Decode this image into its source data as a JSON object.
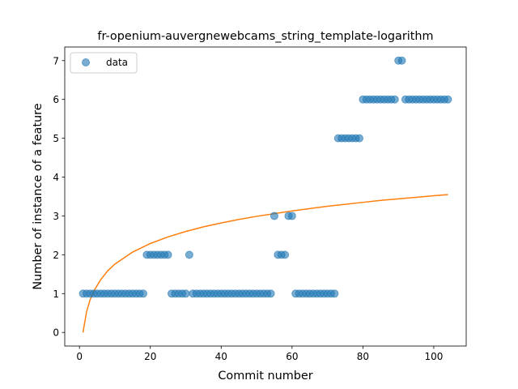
{
  "chart_data": {
    "type": "scatter",
    "title": "fr-openium-auvergnewebcams_string_template-logarithm",
    "xlabel": "Commit number",
    "ylabel": "Number of instance of a feature",
    "xlim": [
      -4.15,
      109.15
    ],
    "ylim": [
      -0.35,
      7.35
    ],
    "xticks": [
      0,
      20,
      40,
      60,
      80,
      100
    ],
    "yticks": [
      0,
      1,
      2,
      3,
      4,
      5,
      6,
      7
    ],
    "grid": false,
    "legend": {
      "position": "top-left",
      "entries": [
        "data"
      ]
    },
    "colors": {
      "scatter": "#1f77b4",
      "fit": "#ff7f0e"
    },
    "series": [
      {
        "name": "data",
        "kind": "scatter",
        "points": [
          [
            1,
            1
          ],
          [
            2,
            1
          ],
          [
            3,
            1
          ],
          [
            4,
            1
          ],
          [
            5,
            1
          ],
          [
            6,
            1
          ],
          [
            7,
            1
          ],
          [
            8,
            1
          ],
          [
            9,
            1
          ],
          [
            10,
            1
          ],
          [
            11,
            1
          ],
          [
            12,
            1
          ],
          [
            13,
            1
          ],
          [
            14,
            1
          ],
          [
            15,
            1
          ],
          [
            16,
            1
          ],
          [
            17,
            1
          ],
          [
            18,
            1
          ],
          [
            19,
            2
          ],
          [
            20,
            2
          ],
          [
            21,
            2
          ],
          [
            22,
            2
          ],
          [
            23,
            2
          ],
          [
            24,
            2
          ],
          [
            25,
            2
          ],
          [
            26,
            1
          ],
          [
            27,
            1
          ],
          [
            28,
            1
          ],
          [
            29,
            1
          ],
          [
            30,
            1
          ],
          [
            31,
            2
          ],
          [
            32,
            1
          ],
          [
            33,
            1
          ],
          [
            34,
            1
          ],
          [
            35,
            1
          ],
          [
            36,
            1
          ],
          [
            37,
            1
          ],
          [
            38,
            1
          ],
          [
            39,
            1
          ],
          [
            40,
            1
          ],
          [
            41,
            1
          ],
          [
            42,
            1
          ],
          [
            43,
            1
          ],
          [
            44,
            1
          ],
          [
            45,
            1
          ],
          [
            46,
            1
          ],
          [
            47,
            1
          ],
          [
            48,
            1
          ],
          [
            49,
            1
          ],
          [
            50,
            1
          ],
          [
            51,
            1
          ],
          [
            52,
            1
          ],
          [
            53,
            1
          ],
          [
            54,
            1
          ],
          [
            55,
            3
          ],
          [
            56,
            2
          ],
          [
            57,
            2
          ],
          [
            58,
            2
          ],
          [
            59,
            3
          ],
          [
            60,
            3
          ],
          [
            61,
            1
          ],
          [
            62,
            1
          ],
          [
            63,
            1
          ],
          [
            64,
            1
          ],
          [
            65,
            1
          ],
          [
            66,
            1
          ],
          [
            67,
            1
          ],
          [
            68,
            1
          ],
          [
            69,
            1
          ],
          [
            70,
            1
          ],
          [
            71,
            1
          ],
          [
            72,
            1
          ],
          [
            73,
            5
          ],
          [
            74,
            5
          ],
          [
            75,
            5
          ],
          [
            76,
            5
          ],
          [
            77,
            5
          ],
          [
            78,
            5
          ],
          [
            79,
            5
          ],
          [
            80,
            6
          ],
          [
            81,
            6
          ],
          [
            82,
            6
          ],
          [
            83,
            6
          ],
          [
            84,
            6
          ],
          [
            85,
            6
          ],
          [
            86,
            6
          ],
          [
            87,
            6
          ],
          [
            88,
            6
          ],
          [
            89,
            6
          ],
          [
            90,
            7
          ],
          [
            91,
            7
          ],
          [
            92,
            6
          ],
          [
            93,
            6
          ],
          [
            94,
            6
          ],
          [
            95,
            6
          ],
          [
            96,
            6
          ],
          [
            97,
            6
          ],
          [
            98,
            6
          ],
          [
            99,
            6
          ],
          [
            100,
            6
          ],
          [
            101,
            6
          ],
          [
            102,
            6
          ],
          [
            103,
            6
          ],
          [
            104,
            6
          ]
        ]
      },
      {
        "kind": "line",
        "points": [
          [
            1,
            0
          ],
          [
            2,
            0.53
          ],
          [
            3,
            0.84
          ],
          [
            4,
            1.06
          ],
          [
            6,
            1.36
          ],
          [
            8,
            1.59
          ],
          [
            10,
            1.76
          ],
          [
            15,
            2.07
          ],
          [
            20,
            2.29
          ],
          [
            25,
            2.46
          ],
          [
            30,
            2.6
          ],
          [
            35,
            2.72
          ],
          [
            40,
            2.82
          ],
          [
            45,
            2.91
          ],
          [
            50,
            2.99
          ],
          [
            55,
            3.06
          ],
          [
            60,
            3.13
          ],
          [
            65,
            3.19
          ],
          [
            70,
            3.25
          ],
          [
            75,
            3.3
          ],
          [
            80,
            3.35
          ],
          [
            85,
            3.4
          ],
          [
            90,
            3.44
          ],
          [
            95,
            3.48
          ],
          [
            100,
            3.52
          ],
          [
            104,
            3.55
          ]
        ]
      }
    ]
  }
}
